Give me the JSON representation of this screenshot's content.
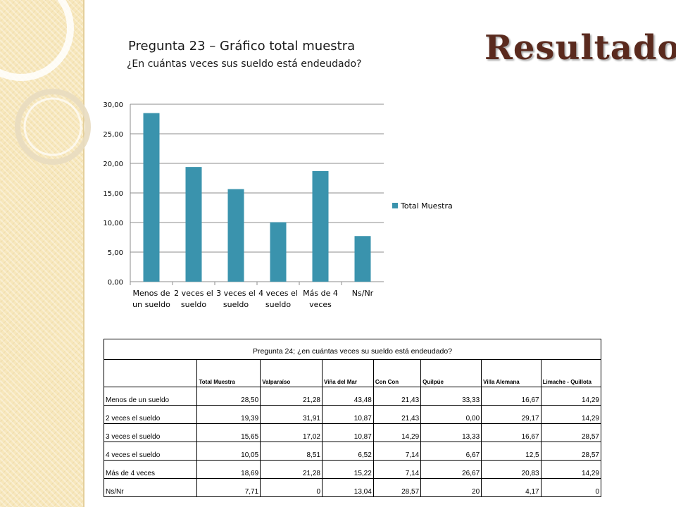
{
  "slide": {
    "heading": "Resultados",
    "chart_title": "Pregunta 23 – Gráfico total muestra",
    "chart_subtitle": "¿En cuántas veces sus sueldo está endeudado?"
  },
  "chart_data": {
    "type": "bar",
    "categories": [
      [
        "Menos de",
        "un sueldo"
      ],
      [
        "2 veces el",
        "sueldo"
      ],
      [
        "3 veces el",
        "sueldo"
      ],
      [
        "4 veces el",
        "sueldo"
      ],
      [
        "Más de 4",
        "veces"
      ],
      [
        "Ns/Nr"
      ]
    ],
    "series": [
      {
        "name": "Total Muestra",
        "values": [
          28.5,
          19.39,
          15.65,
          10.05,
          18.69,
          7.71
        ],
        "color": "#3a93ad"
      }
    ],
    "yticks": [
      "0,00",
      "5,00",
      "10,00",
      "15,00",
      "20,00",
      "25,00",
      "30,00"
    ],
    "ylim": [
      0,
      30
    ],
    "grid": true,
    "legend_position": "right"
  },
  "table": {
    "caption": "Pregunta 24; ¿en cuántas veces su sueldo está endeudado?",
    "headers": [
      "",
      "Total Muestra",
      "Valparaíso",
      "Viña del Mar",
      "Con Con",
      "Quilpúe",
      "Villa Alemana",
      "Limache - Quillota"
    ],
    "rows": [
      [
        "Menos de un sueldo",
        "28,50",
        "21,28",
        "43,48",
        "21,43",
        "33,33",
        "16,67",
        "14,29"
      ],
      [
        "2 veces el sueldo",
        "19,39",
        "31,91",
        "10,87",
        "21,43",
        "0,00",
        "29,17",
        "14,29"
      ],
      [
        "3 veces el sueldo",
        "15,65",
        "17,02",
        "10,87",
        "14,29",
        "13,33",
        "16,67",
        "28,57"
      ],
      [
        "4 veces el sueldo",
        "10,05",
        "8,51",
        "6,52",
        "7,14",
        "6,67",
        "12,5",
        "28,57"
      ],
      [
        "Más de 4 veces",
        "18,69",
        "21,28",
        "15,22",
        "7,14",
        "26,67",
        "20,83",
        "14,29"
      ],
      [
        "Ns/Nr",
        "7,71",
        "0",
        "13,04",
        "28,57",
        "20",
        "4,17",
        "0"
      ]
    ]
  }
}
